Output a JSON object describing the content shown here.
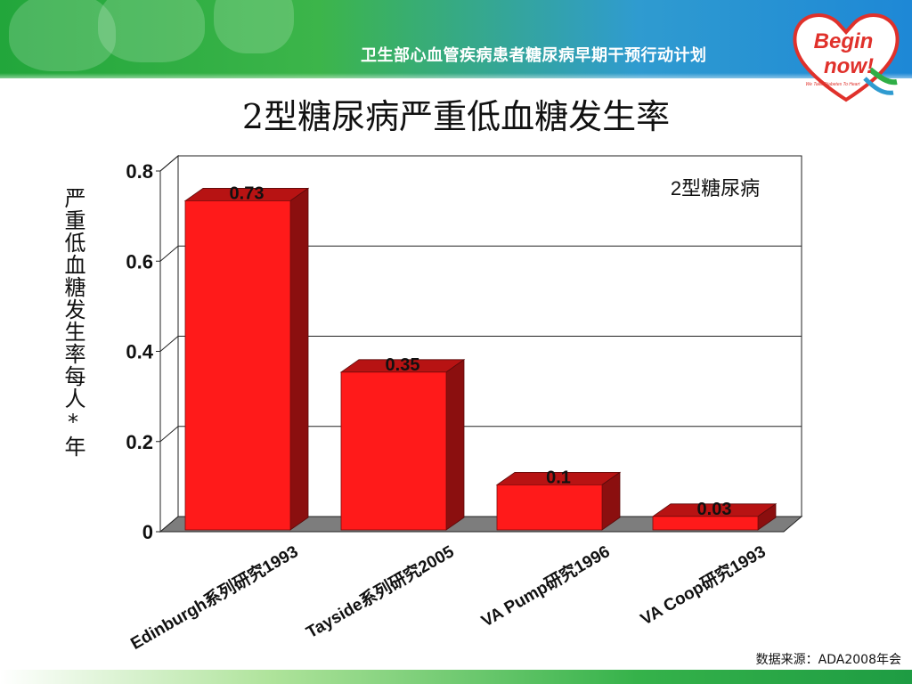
{
  "header": {
    "title": "卫生部心血管疾病患者糖尿病早期干预行动计划",
    "logo_line1": "Begin",
    "logo_line2": "now!",
    "logo_tagline": "We Take Diabetes To Heart"
  },
  "slide_title": "2型糖尿病严重低血糖发生率",
  "source_note": "数据来源：ADA2008年会",
  "colors": {
    "bar_front": "#ff1a1a",
    "bar_side": "#8b0f0f",
    "bar_top": "#b71313",
    "floor": "#7d7d7d",
    "header_green": "#2fae46",
    "header_blue": "#1e88d6"
  },
  "chart_data": {
    "type": "bar",
    "title": "",
    "legend_text": "2型糖尿病",
    "ylabel": "严重低血糖发生率每人*年",
    "xlabel": "",
    "ylim": [
      0,
      0.8
    ],
    "yticks": [
      {
        "value": 0,
        "label": "0"
      },
      {
        "value": 0.2,
        "label": "0.2"
      },
      {
        "value": 0.4,
        "label": "0.4"
      },
      {
        "value": 0.6,
        "label": "0.6"
      },
      {
        "value": 0.8,
        "label": "0.8"
      }
    ],
    "categories": [
      "Edinburgh系列研究1993",
      "Tayside系列研究2005",
      "VA Pump研究1996",
      "VA Coop研究1993"
    ],
    "values": [
      0.73,
      0.35,
      0.1,
      0.03
    ],
    "value_labels": [
      "0.73",
      "0.35",
      "0.1",
      "0.03"
    ],
    "grid": true,
    "style": "3d"
  }
}
